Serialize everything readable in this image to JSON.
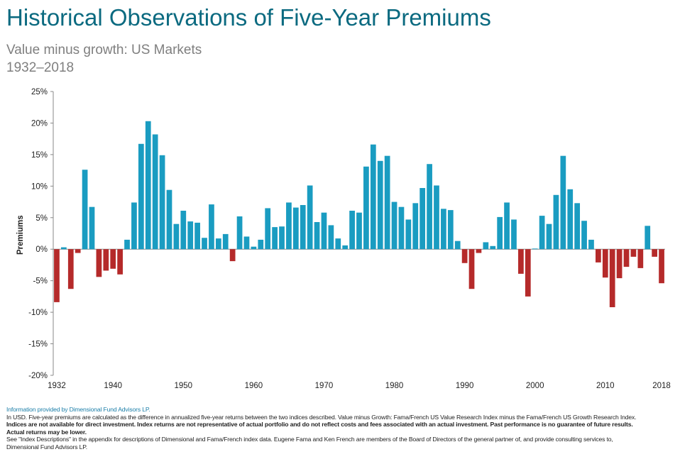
{
  "header": {
    "title": "Historical Observations of Five-Year Premiums",
    "subtitle": "Value minus growth: US Markets",
    "period": "1932–2018"
  },
  "colors": {
    "title": "#0b6a80",
    "positive": "#1a9cc1",
    "negative": "#b52a2a",
    "subtitle": "#7f7f7f",
    "source": "#1b7ea8"
  },
  "chart_data": {
    "type": "bar",
    "ylabel": "Premiums",
    "ylim": [
      -20,
      25
    ],
    "yticks": [
      25,
      20,
      15,
      10,
      5,
      0,
      -5,
      -10,
      -15,
      -20
    ],
    "ytick_labels": [
      "25%",
      "20%",
      "15%",
      "10%",
      "5%",
      "0%",
      "-5%",
      "-10%",
      "-15%",
      "-20%"
    ],
    "xtick_labels": [
      "1932",
      "1940",
      "1950",
      "1960",
      "1970",
      "1980",
      "1990",
      "2000",
      "2010",
      "2018"
    ],
    "x": [
      1932,
      1933,
      1934,
      1935,
      1936,
      1937,
      1938,
      1939,
      1940,
      1941,
      1942,
      1943,
      1944,
      1945,
      1946,
      1947,
      1948,
      1949,
      1950,
      1951,
      1952,
      1953,
      1954,
      1955,
      1956,
      1957,
      1958,
      1959,
      1960,
      1961,
      1962,
      1963,
      1964,
      1965,
      1966,
      1967,
      1968,
      1969,
      1970,
      1971,
      1972,
      1973,
      1974,
      1975,
      1976,
      1977,
      1978,
      1979,
      1980,
      1981,
      1982,
      1983,
      1984,
      1985,
      1986,
      1987,
      1988,
      1989,
      1990,
      1991,
      1992,
      1993,
      1994,
      1995,
      1996,
      1997,
      1998,
      1999,
      2000,
      2001,
      2002,
      2003,
      2004,
      2005,
      2006,
      2007,
      2008,
      2009,
      2010,
      2011,
      2012,
      2013,
      2014,
      2015,
      2016,
      2017,
      2018
    ],
    "values": [
      -8.4,
      0.3,
      -6.3,
      -0.6,
      12.6,
      6.7,
      -4.4,
      -3.4,
      -3.1,
      -4.0,
      1.5,
      7.4,
      16.7,
      20.3,
      18.2,
      14.9,
      9.4,
      4.0,
      6.1,
      4.4,
      4.2,
      1.8,
      7.1,
      1.7,
      2.4,
      -1.9,
      5.2,
      2.0,
      0.4,
      1.5,
      6.5,
      3.5,
      3.6,
      7.4,
      6.6,
      7.0,
      10.1,
      4.3,
      5.8,
      3.8,
      1.7,
      0.6,
      6.1,
      5.8,
      13.1,
      16.6,
      14.0,
      14.8,
      7.5,
      6.7,
      4.7,
      7.3,
      9.7,
      13.5,
      10.1,
      6.4,
      6.2,
      1.3,
      -2.2,
      -6.3,
      -0.6,
      1.1,
      0.5,
      5.1,
      7.4,
      4.7,
      -3.9,
      -7.5,
      0.1,
      5.3,
      4.0,
      8.6,
      14.8,
      9.5,
      7.3,
      4.5,
      1.5,
      -2.1,
      -4.5,
      -9.2,
      -4.6,
      -2.8,
      -1.2,
      -3.0,
      3.7,
      -1.2,
      -5.4
    ]
  },
  "footer": {
    "source": "Information provided by Dimensional Fund Advisors LP.",
    "line1": "In USD. Five-year premiums are calculated as the difference in annualized five-year returns between the two indices described. Value minus Growth: Fama/French US Value Research Index minus the Fama/French US Growth Research Index.",
    "line2": "Indices are not available for direct investment. Index returns are not representative of actual portfolio and do not reflect costs and fees associated with an actual investment. Past performance is no guarantee of future results.",
    "line3": "Actual returns may be lower.",
    "line4": "See \"Index Descriptions\" in the appendix for descriptions of Dimensional and Fama/French index data. Eugene Fama and Ken French are members of the Board of Directors of the general partner of, and provide consulting services to,",
    "line5": "Dimensional Fund Advisors LP."
  }
}
